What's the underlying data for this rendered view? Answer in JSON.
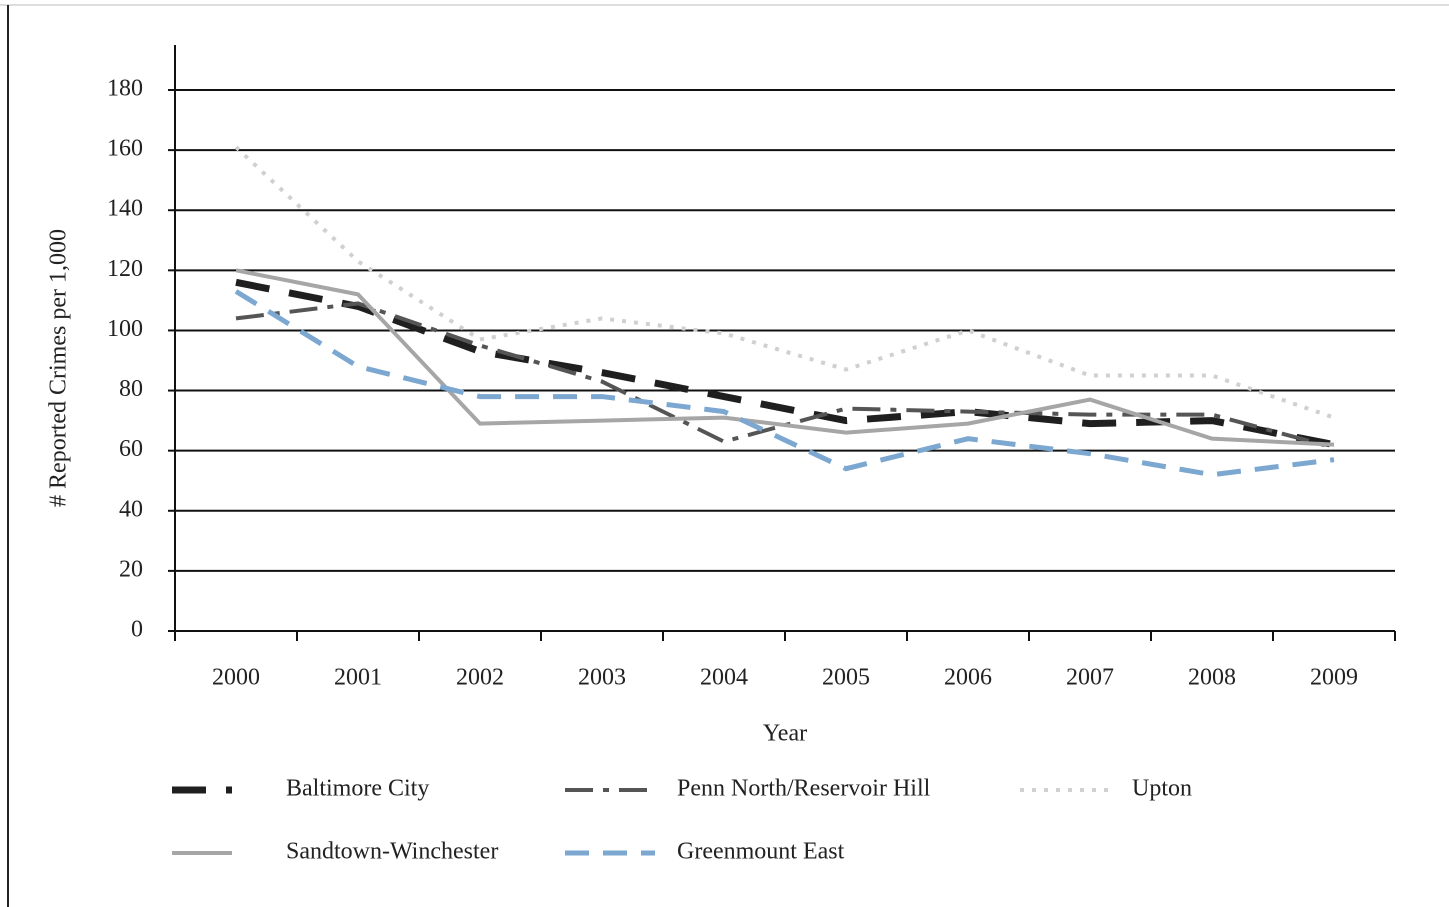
{
  "chart_data": {
    "type": "line",
    "x_label": "Year",
    "y_label": "# Reported Crimes per 1,000",
    "categories": [
      "2000",
      "2001",
      "2002",
      "2003",
      "2004",
      "2005",
      "2006",
      "2007",
      "2008",
      "2009"
    ],
    "series": [
      {
        "name": "Baltimore City",
        "color": "#1f1f1f",
        "values": [
          116,
          108,
          93,
          86,
          78,
          70,
          73,
          69,
          70,
          62
        ]
      },
      {
        "name": "Penn North/Reservoir Hill",
        "color": "#555555",
        "values": [
          104,
          109,
          95,
          83,
          63,
          74,
          73,
          72,
          72,
          61
        ]
      },
      {
        "name": "Upton",
        "color": "#d0d0d0",
        "values": [
          161,
          123,
          97,
          104,
          99,
          87,
          100,
          85,
          85,
          71
        ]
      },
      {
        "name": "Sandtown-Winchester",
        "color": "#a6a6a6",
        "values": [
          120,
          112,
          69,
          70,
          71,
          66,
          69,
          77,
          64,
          62
        ]
      },
      {
        "name": "Greenmount East",
        "color": "#7ba7d0",
        "values": [
          113,
          88,
          78,
          78,
          73,
          54,
          64,
          59,
          52,
          57
        ]
      }
    ],
    "ylim": [
      0,
      180
    ],
    "yticks": [
      0,
      20,
      40,
      60,
      80,
      100,
      120,
      140,
      160,
      180
    ],
    "grid": true
  }
}
